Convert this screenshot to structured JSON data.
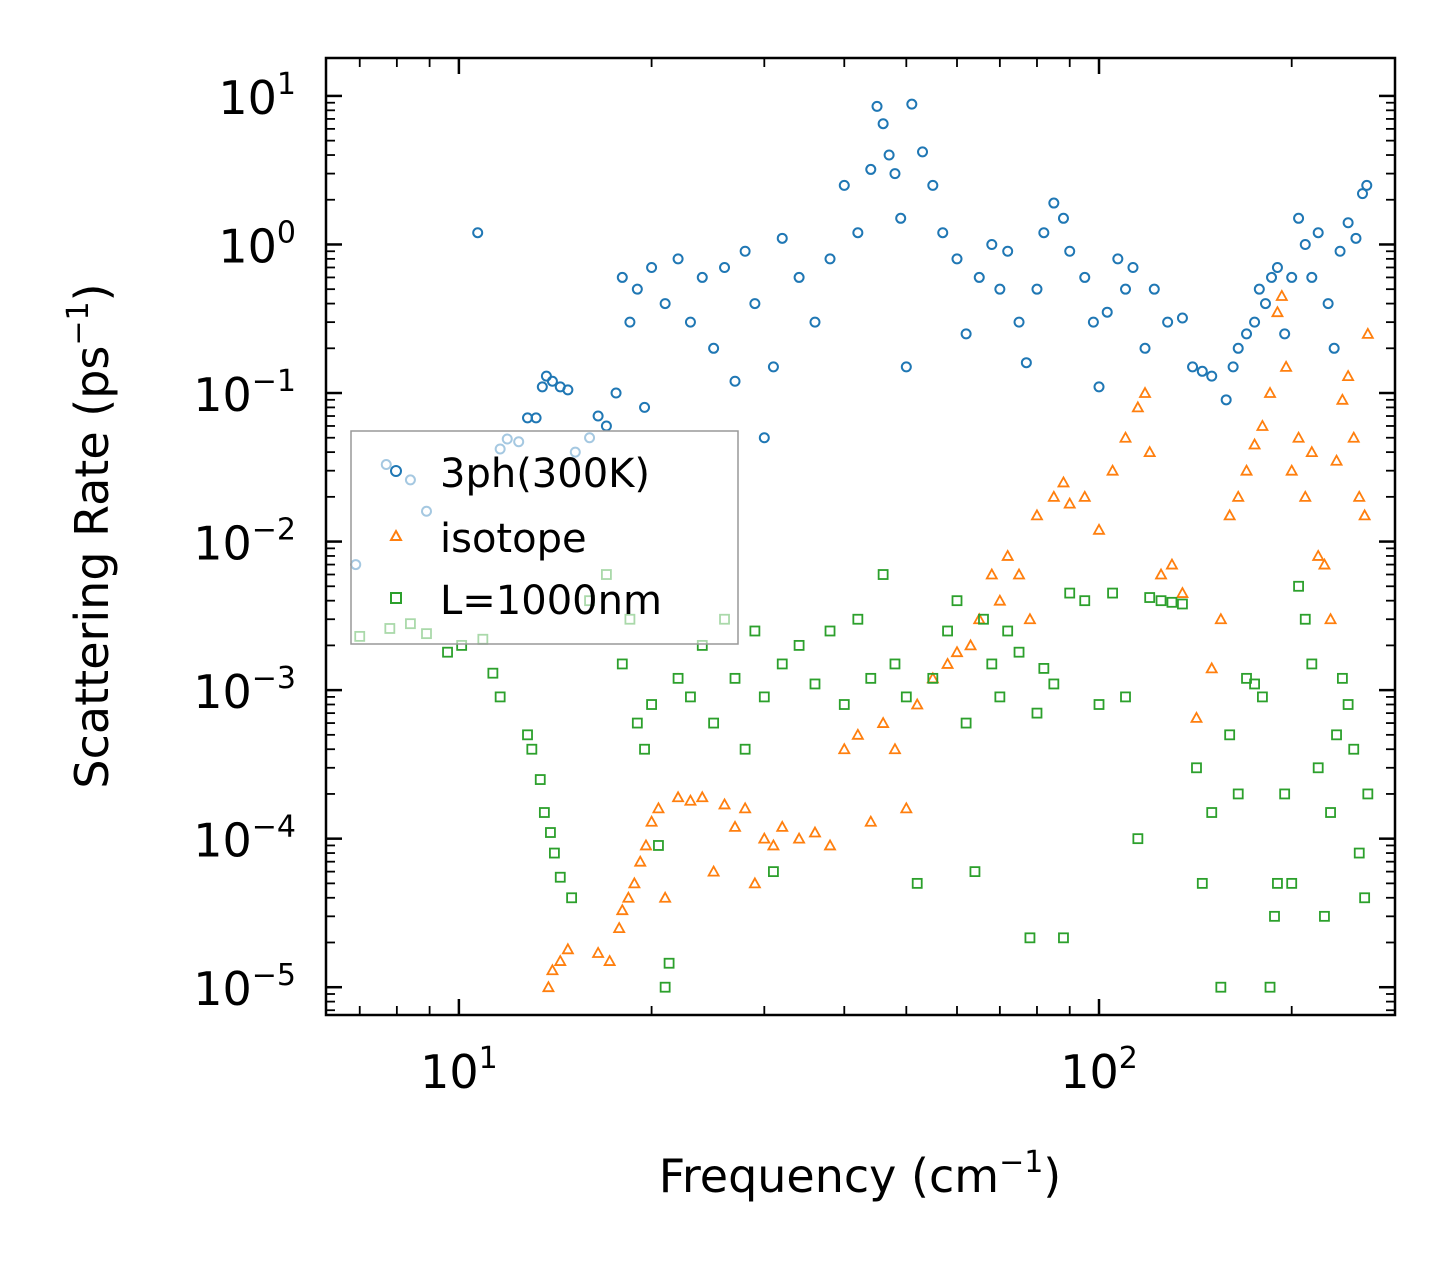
{
  "chart_data": {
    "type": "scatter",
    "title": "",
    "xlabel": "Frequency (cm",
    "xlabel_sup": "−1",
    "xlabel_close": ")",
    "ylabel": "Scattering Rate (ps",
    "ylabel_sup": "−1",
    "ylabel_close": ")",
    "xscale": "log",
    "yscale": "log",
    "xlim": [
      6.2,
      290
    ],
    "ylim": [
      6.5e-06,
      18
    ],
    "x_ticks": [
      {
        "value": 10,
        "base": "10",
        "exp": "1"
      },
      {
        "value": 100,
        "base": "10",
        "exp": "2"
      }
    ],
    "y_ticks": [
      {
        "value": 10,
        "base": "10",
        "exp": "1"
      },
      {
        "value": 1,
        "base": "10",
        "exp": "0"
      },
      {
        "value": 0.1,
        "base": "10",
        "exp": "−1"
      },
      {
        "value": 0.01,
        "base": "10",
        "exp": "−2"
      },
      {
        "value": 0.001,
        "base": "10",
        "exp": "−3"
      },
      {
        "value": 0.0001,
        "base": "10",
        "exp": "−4"
      },
      {
        "value": 1e-05,
        "base": "10",
        "exp": "−5"
      }
    ],
    "legend_position": "center-left",
    "series": [
      {
        "name": "3ph(300K)",
        "marker": "circle",
        "color": "#1f77b4",
        "points": [
          [
            6.9,
            0.007
          ],
          [
            7.7,
            0.033
          ],
          [
            8.4,
            0.026
          ],
          [
            8.9,
            0.016
          ],
          [
            10.7,
            1.2
          ],
          [
            11.6,
            0.042
          ],
          [
            11.9,
            0.049
          ],
          [
            12.4,
            0.047
          ],
          [
            12.8,
            0.068
          ],
          [
            13.2,
            0.068
          ],
          [
            13.5,
            0.11
          ],
          [
            13.7,
            0.13
          ],
          [
            14.0,
            0.12
          ],
          [
            14.4,
            0.11
          ],
          [
            14.8,
            0.105
          ],
          [
            15.2,
            0.04
          ],
          [
            16.0,
            0.05
          ],
          [
            16.5,
            0.07
          ],
          [
            17.0,
            0.06
          ],
          [
            17.6,
            0.1
          ],
          [
            18.0,
            0.6
          ],
          [
            18.5,
            0.3
          ],
          [
            19.0,
            0.5
          ],
          [
            19.5,
            0.08
          ],
          [
            20.0,
            0.7
          ],
          [
            21.0,
            0.4
          ],
          [
            22.0,
            0.8
          ],
          [
            23.0,
            0.3
          ],
          [
            24.0,
            0.6
          ],
          [
            25.0,
            0.2
          ],
          [
            26.0,
            0.7
          ],
          [
            27.0,
            0.12
          ],
          [
            28.0,
            0.9
          ],
          [
            29.0,
            0.4
          ],
          [
            30.0,
            0.05
          ],
          [
            31.0,
            0.15
          ],
          [
            32.0,
            1.1
          ],
          [
            34.0,
            0.6
          ],
          [
            36.0,
            0.3
          ],
          [
            38.0,
            0.8
          ],
          [
            40.0,
            2.5
          ],
          [
            42.0,
            1.2
          ],
          [
            44.0,
            3.2
          ],
          [
            45.0,
            8.5
          ],
          [
            46.0,
            6.5
          ],
          [
            47.0,
            4.0
          ],
          [
            48.0,
            3.0
          ],
          [
            49.0,
            1.5
          ],
          [
            50.0,
            0.15
          ],
          [
            51.0,
            8.8
          ],
          [
            53.0,
            4.2
          ],
          [
            55.0,
            2.5
          ],
          [
            57.0,
            1.2
          ],
          [
            60.0,
            0.8
          ],
          [
            62.0,
            0.25
          ],
          [
            65.0,
            0.6
          ],
          [
            68.0,
            1.0
          ],
          [
            70.0,
            0.5
          ],
          [
            72.0,
            0.9
          ],
          [
            75.0,
            0.3
          ],
          [
            77.0,
            0.16
          ],
          [
            80.0,
            0.5
          ],
          [
            82.0,
            1.2
          ],
          [
            85.0,
            1.9
          ],
          [
            88.0,
            1.5
          ],
          [
            90.0,
            0.9
          ],
          [
            95.0,
            0.6
          ],
          [
            98.0,
            0.3
          ],
          [
            100.0,
            0.11
          ],
          [
            103.0,
            0.35
          ],
          [
            107.0,
            0.8
          ],
          [
            110.0,
            0.5
          ],
          [
            113.0,
            0.7
          ],
          [
            118.0,
            0.2
          ],
          [
            122.0,
            0.5
          ],
          [
            128.0,
            0.3
          ],
          [
            135.0,
            0.32
          ],
          [
            140.0,
            0.15
          ],
          [
            145.0,
            0.14
          ],
          [
            150.0,
            0.13
          ],
          [
            158.0,
            0.09
          ],
          [
            162.0,
            0.15
          ],
          [
            165.0,
            0.2
          ],
          [
            170.0,
            0.25
          ],
          [
            175.0,
            0.3
          ],
          [
            178.0,
            0.5
          ],
          [
            182.0,
            0.4
          ],
          [
            186.0,
            0.6
          ],
          [
            190.0,
            0.7
          ],
          [
            195.0,
            0.25
          ],
          [
            200.0,
            0.6
          ],
          [
            205.0,
            1.5
          ],
          [
            210.0,
            1.0
          ],
          [
            215.0,
            0.6
          ],
          [
            220.0,
            1.2
          ],
          [
            228.0,
            0.4
          ],
          [
            233.0,
            0.2
          ],
          [
            238.0,
            0.9
          ],
          [
            245.0,
            1.4
          ],
          [
            252.0,
            1.1
          ],
          [
            258.0,
            2.2
          ],
          [
            262.0,
            2.5
          ]
        ]
      },
      {
        "name": "isotope",
        "marker": "triangle",
        "color": "#ff7f0e",
        "points": [
          [
            13.8,
            1e-05
          ],
          [
            14.0,
            1.3e-05
          ],
          [
            14.4,
            1.5e-05
          ],
          [
            14.8,
            1.8e-05
          ],
          [
            16.5,
            1.7e-05
          ],
          [
            17.2,
            1.5e-05
          ],
          [
            17.8,
            2.5e-05
          ],
          [
            18.0,
            3.3e-05
          ],
          [
            18.4,
            4e-05
          ],
          [
            18.8,
            5e-05
          ],
          [
            19.2,
            7e-05
          ],
          [
            19.6,
            9e-05
          ],
          [
            20.0,
            0.00013
          ],
          [
            20.5,
            0.00016
          ],
          [
            21.0,
            4e-05
          ],
          [
            22.0,
            0.00019
          ],
          [
            23.0,
            0.00018
          ],
          [
            24.0,
            0.00019
          ],
          [
            25.0,
            6e-05
          ],
          [
            26.0,
            0.00017
          ],
          [
            27.0,
            0.00012
          ],
          [
            28.0,
            0.00016
          ],
          [
            29.0,
            5e-05
          ],
          [
            30.0,
            0.0001
          ],
          [
            31.0,
            9e-05
          ],
          [
            32.0,
            0.00012
          ],
          [
            34.0,
            0.0001
          ],
          [
            36.0,
            0.00011
          ],
          [
            38.0,
            9e-05
          ],
          [
            40.0,
            0.0004
          ],
          [
            42.0,
            0.0005
          ],
          [
            44.0,
            0.00013
          ],
          [
            46.0,
            0.0006
          ],
          [
            48.0,
            0.0004
          ],
          [
            50.0,
            0.00016
          ],
          [
            52.0,
            0.0008
          ],
          [
            55.0,
            0.0012
          ],
          [
            58.0,
            0.0015
          ],
          [
            60.0,
            0.0018
          ],
          [
            63.0,
            0.002
          ],
          [
            65.0,
            0.003
          ],
          [
            68.0,
            0.006
          ],
          [
            70.0,
            0.004
          ],
          [
            72.0,
            0.008
          ],
          [
            75.0,
            0.006
          ],
          [
            78.0,
            0.003
          ],
          [
            80.0,
            0.015
          ],
          [
            85.0,
            0.02
          ],
          [
            88.0,
            0.025
          ],
          [
            90.0,
            0.018
          ],
          [
            95.0,
            0.02
          ],
          [
            100.0,
            0.012
          ],
          [
            105.0,
            0.03
          ],
          [
            110.0,
            0.05
          ],
          [
            115.0,
            0.08
          ],
          [
            118.0,
            0.1
          ],
          [
            120.0,
            0.04
          ],
          [
            125.0,
            0.006
          ],
          [
            130.0,
            0.007
          ],
          [
            135.0,
            0.0045
          ],
          [
            142.0,
            0.00065
          ],
          [
            150.0,
            0.0014
          ],
          [
            155.0,
            0.003
          ],
          [
            160.0,
            0.015
          ],
          [
            165.0,
            0.02
          ],
          [
            170.0,
            0.03
          ],
          [
            175.0,
            0.045
          ],
          [
            180.0,
            0.06
          ],
          [
            185.0,
            0.1
          ],
          [
            190.0,
            0.35
          ],
          [
            193.0,
            0.45
          ],
          [
            196.0,
            0.15
          ],
          [
            200.0,
            0.03
          ],
          [
            205.0,
            0.05
          ],
          [
            210.0,
            0.02
          ],
          [
            215.0,
            0.04
          ],
          [
            220.0,
            0.008
          ],
          [
            225.0,
            0.007
          ],
          [
            230.0,
            0.003
          ],
          [
            235.0,
            0.035
          ],
          [
            240.0,
            0.09
          ],
          [
            245.0,
            0.13
          ],
          [
            250.0,
            0.05
          ],
          [
            255.0,
            0.02
          ],
          [
            260.0,
            0.015
          ],
          [
            263.0,
            0.25
          ]
        ]
      },
      {
        "name": "L=1000nm",
        "marker": "square",
        "color": "#2ca02c",
        "points": [
          [
            7.0,
            0.0023
          ],
          [
            7.8,
            0.0026
          ],
          [
            8.4,
            0.0028
          ],
          [
            8.9,
            0.0024
          ],
          [
            9.6,
            0.0018
          ],
          [
            10.1,
            0.002
          ],
          [
            10.9,
            0.0022
          ],
          [
            11.3,
            0.0013
          ],
          [
            11.6,
            0.0009
          ],
          [
            12.8,
            0.0005
          ],
          [
            13.0,
            0.0004
          ],
          [
            13.4,
            0.00025
          ],
          [
            13.6,
            0.00015
          ],
          [
            13.9,
            0.00011
          ],
          [
            14.1,
            8e-05
          ],
          [
            14.4,
            5.5e-05
          ],
          [
            15.0,
            4e-05
          ],
          [
            16.0,
            0.004
          ],
          [
            17.0,
            0.006
          ],
          [
            18.0,
            0.0015
          ],
          [
            18.5,
            0.003
          ],
          [
            19.0,
            0.0006
          ],
          [
            19.5,
            0.0004
          ],
          [
            20.0,
            0.0008
          ],
          [
            20.5,
            9e-05
          ],
          [
            21.0,
            1e-05
          ],
          [
            21.3,
            1.45e-05
          ],
          [
            22.0,
            0.0012
          ],
          [
            23.0,
            0.0009
          ],
          [
            24.0,
            0.002
          ],
          [
            25.0,
            0.0006
          ],
          [
            26.0,
            0.003
          ],
          [
            27.0,
            0.0012
          ],
          [
            28.0,
            0.0004
          ],
          [
            29.0,
            0.0025
          ],
          [
            30.0,
            0.0009
          ],
          [
            31.0,
            6e-05
          ],
          [
            32.0,
            0.0015
          ],
          [
            34.0,
            0.002
          ],
          [
            36.0,
            0.0011
          ],
          [
            38.0,
            0.0025
          ],
          [
            40.0,
            0.0008
          ],
          [
            42.0,
            0.003
          ],
          [
            44.0,
            0.0012
          ],
          [
            46.0,
            0.006
          ],
          [
            48.0,
            0.0015
          ],
          [
            50.0,
            0.0009
          ],
          [
            52.0,
            5e-05
          ],
          [
            55.0,
            0.0012
          ],
          [
            58.0,
            0.0025
          ],
          [
            60.0,
            0.004
          ],
          [
            62.0,
            0.0006
          ],
          [
            64.0,
            6e-05
          ],
          [
            66.0,
            0.003
          ],
          [
            68.0,
            0.0015
          ],
          [
            70.0,
            0.0009
          ],
          [
            72.0,
            0.0025
          ],
          [
            75.0,
            0.0018
          ],
          [
            78.0,
            2.15e-05
          ],
          [
            80.0,
            0.0007
          ],
          [
            82.0,
            0.0014
          ],
          [
            85.0,
            0.0011
          ],
          [
            88.0,
            2.15e-05
          ],
          [
            90.0,
            0.0045
          ],
          [
            95.0,
            0.004
          ],
          [
            100.0,
            0.0008
          ],
          [
            105.0,
            0.0045
          ],
          [
            110.0,
            0.0009
          ],
          [
            115.0,
            0.0001
          ],
          [
            120.0,
            0.0042
          ],
          [
            125.0,
            0.004
          ],
          [
            130.0,
            0.0039
          ],
          [
            135.0,
            0.0038
          ],
          [
            142.0,
            0.0003
          ],
          [
            145.0,
            5e-05
          ],
          [
            150.0,
            0.00015
          ],
          [
            155.0,
            1e-05
          ],
          [
            160.0,
            0.0005
          ],
          [
            165.0,
            0.0002
          ],
          [
            170.0,
            0.0012
          ],
          [
            175.0,
            0.0011
          ],
          [
            180.0,
            0.0009
          ],
          [
            185.0,
            1e-05
          ],
          [
            188.0,
            3e-05
          ],
          [
            190.0,
            5e-05
          ],
          [
            195.0,
            0.0002
          ],
          [
            200.0,
            5e-05
          ],
          [
            205.0,
            0.005
          ],
          [
            210.0,
            0.003
          ],
          [
            215.0,
            0.0015
          ],
          [
            220.0,
            0.0003
          ],
          [
            225.0,
            3e-05
          ],
          [
            230.0,
            0.00015
          ],
          [
            235.0,
            0.0005
          ],
          [
            240.0,
            0.0012
          ],
          [
            245.0,
            0.0008
          ],
          [
            250.0,
            0.0004
          ],
          [
            255.0,
            8e-05
          ],
          [
            260.0,
            4e-05
          ],
          [
            263.0,
            0.0002
          ]
        ]
      }
    ]
  }
}
